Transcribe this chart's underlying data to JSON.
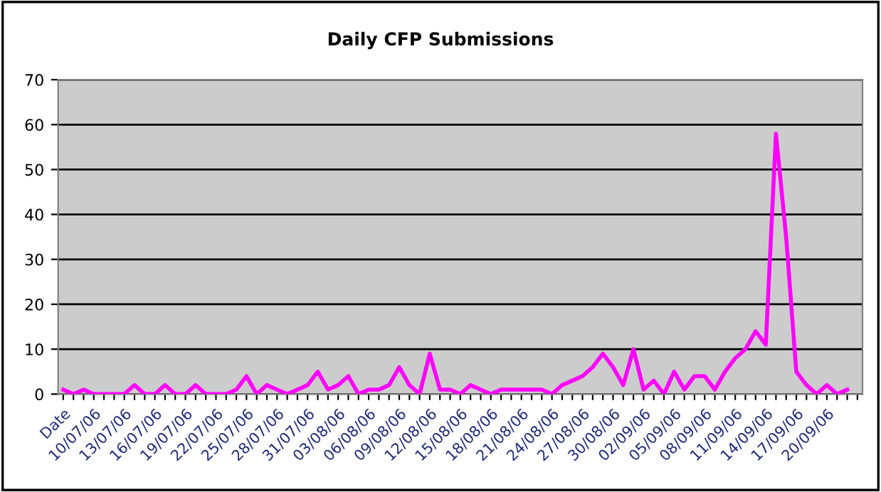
{
  "chart_data": {
    "type": "line",
    "title": "Daily CFP Submissions",
    "categories": [
      "Date",
      null,
      null,
      "10/07/06",
      null,
      null,
      "13/07/06",
      null,
      null,
      "16/07/06",
      null,
      null,
      "19/07/06",
      null,
      null,
      "22/07/06",
      null,
      null,
      "25/07/06",
      null,
      null,
      "28/07/06",
      null,
      null,
      "31/07/06",
      null,
      null,
      "03/08/06",
      null,
      null,
      "06/08/06",
      null,
      null,
      "09/08/06",
      null,
      null,
      "12/08/06",
      null,
      null,
      "15/08/06",
      null,
      null,
      "18/08/06",
      null,
      null,
      "21/08/06",
      null,
      null,
      "24/08/06",
      null,
      null,
      "27/08/06",
      null,
      null,
      "30/08/06",
      null,
      null,
      "02/09/06",
      null,
      null,
      "05/09/06",
      null,
      null,
      "08/09/06",
      null,
      null,
      "11/09/06",
      null,
      null,
      "14/09/06",
      null,
      null,
      "17/09/06",
      null,
      null,
      "20/09/06",
      null,
      null,
      null
    ],
    "series": [
      {
        "color": "#ff00ff",
        "values": [
          1,
          0,
          1,
          0,
          0,
          0,
          0,
          2,
          0,
          0,
          2,
          0,
          0,
          2,
          0,
          0,
          0,
          1,
          4,
          0,
          2,
          1,
          0,
          1,
          2,
          5,
          1,
          2,
          4,
          0,
          1,
          1,
          2,
          6,
          2,
          0,
          9,
          1,
          1,
          0,
          2,
          1,
          0,
          1,
          1,
          1,
          1,
          1,
          0,
          2,
          3,
          4,
          6,
          9,
          6,
          2,
          10,
          1,
          3,
          0,
          5,
          1,
          4,
          4,
          1,
          5,
          8,
          10,
          14,
          11,
          58,
          35,
          5,
          2,
          0,
          2,
          0,
          1,
          null
        ]
      }
    ],
    "ylim": [
      0,
      70
    ],
    "yticks": [
      0,
      10,
      20,
      30,
      40,
      50,
      60,
      70
    ],
    "grid": "y",
    "legend": false,
    "marker": "none",
    "line_style": "solid"
  }
}
